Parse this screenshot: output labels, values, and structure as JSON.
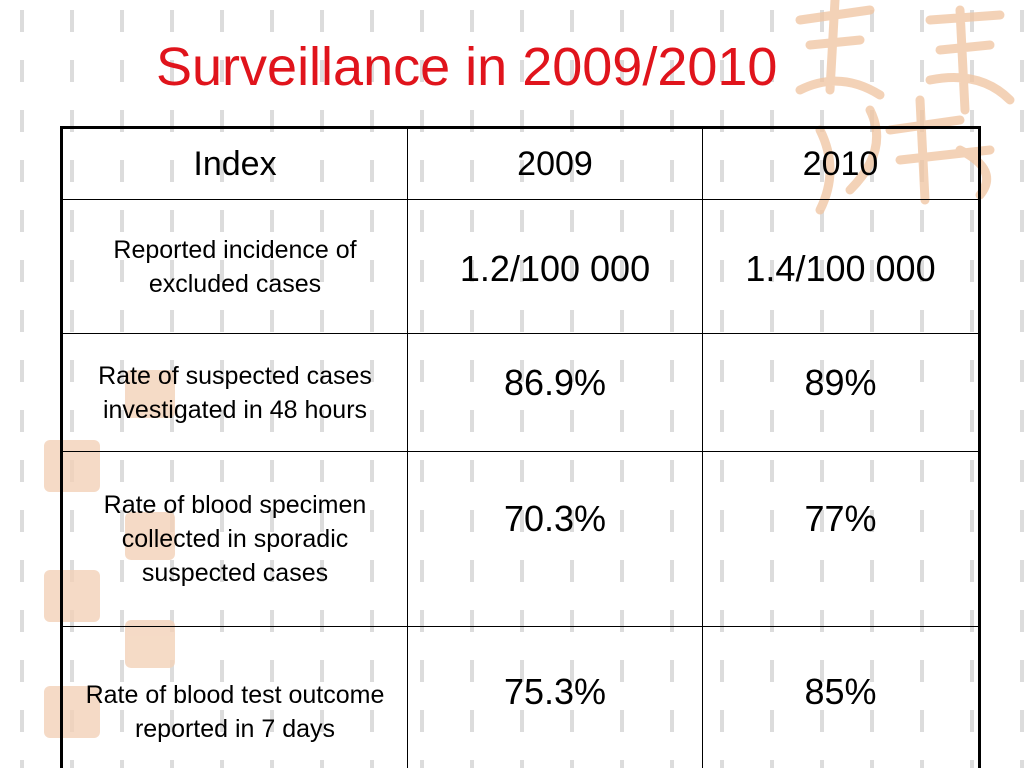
{
  "slide": {
    "title": "Surveillance in 2009/2010"
  },
  "table": {
    "headers": [
      "Index",
      "2009",
      "2010"
    ],
    "rows": [
      {
        "label": "Reported incidence of excluded cases",
        "values": [
          "1.2/100 000",
          "1.4/100 000"
        ]
      },
      {
        "label": "Rate of suspected cases investigated in 48 hours",
        "values": [
          "86.9%",
          "89%"
        ]
      },
      {
        "label": "Rate of blood specimen collected in sporadic suspected cases",
        "values": [
          "70.3%",
          "77%"
        ]
      },
      {
        "label": "Rate of blood test outcome reported in 7 days",
        "values": [
          "75.3%",
          "85%"
        ]
      }
    ]
  },
  "colors": {
    "title": "#e0141c",
    "decoration": "#f2c8a8",
    "dash_pattern": "#d9d9d9"
  }
}
